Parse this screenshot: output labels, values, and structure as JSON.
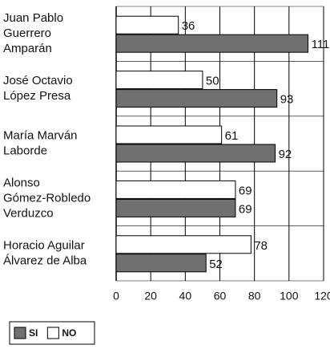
{
  "chart_data": {
    "type": "hbar",
    "categories": [
      "Juan Pablo\nGuerrero\nAmparán",
      "José Octavio\nLópez Presa",
      "María Marván\nLaborde",
      "Alonso\nGómez-Robledo\nVerduzco",
      "Horacio Aguilar\nÁlvarez de Alba"
    ],
    "series": [
      {
        "name": "SI",
        "color": "#707070",
        "values": [
          111,
          93,
          92,
          69,
          52
        ]
      },
      {
        "name": "NO",
        "color": "#ffffff",
        "values": [
          36,
          50,
          61,
          69,
          78
        ]
      }
    ],
    "xlim": [
      0,
      120
    ],
    "xticks": [
      0,
      20,
      40,
      60,
      80,
      100,
      120
    ],
    "grid": true,
    "legend": "bottom-left"
  }
}
